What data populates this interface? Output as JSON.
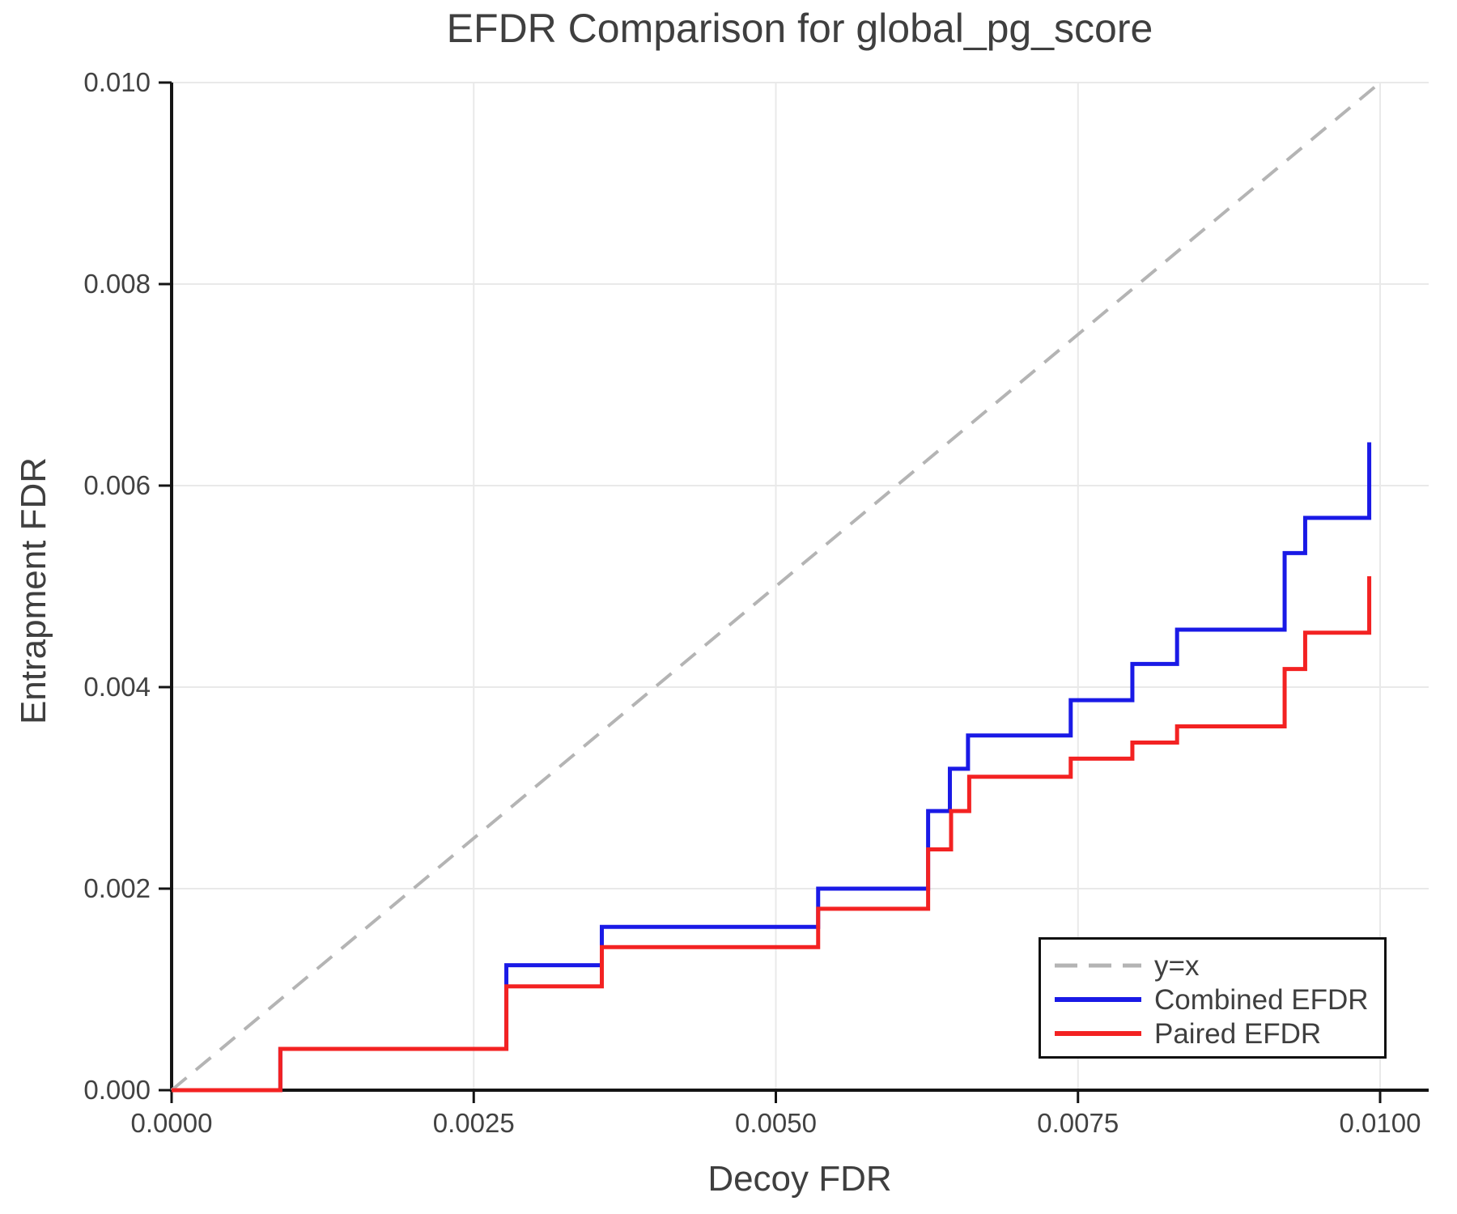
{
  "chart_data": {
    "type": "line",
    "subtype": "step-post",
    "title": "EFDR Comparison for global_pg_score",
    "xlabel": "Decoy FDR",
    "ylabel": "Entrapment FDR",
    "xlim": [
      0,
      0.0104
    ],
    "ylim": [
      0,
      0.01
    ],
    "grid": true,
    "legend_position": "lower right",
    "x_ticks": [
      {
        "value": 0.0,
        "label": "0.0000"
      },
      {
        "value": 0.0025,
        "label": "0.0025"
      },
      {
        "value": 0.005,
        "label": "0.0050"
      },
      {
        "value": 0.0075,
        "label": "0.0075"
      },
      {
        "value": 0.01,
        "label": "0.0100"
      }
    ],
    "y_ticks": [
      {
        "value": 0.0,
        "label": "0.000"
      },
      {
        "value": 0.002,
        "label": "0.002"
      },
      {
        "value": 0.004,
        "label": "0.004"
      },
      {
        "value": 0.006,
        "label": "0.006"
      },
      {
        "value": 0.008,
        "label": "0.008"
      },
      {
        "value": 0.01,
        "label": "0.010"
      }
    ],
    "reference_line": {
      "label": "y=x",
      "from": [
        0,
        0
      ],
      "to": [
        0.01,
        0.01
      ],
      "style": "dashed",
      "color": "#b4b4b4"
    },
    "series": [
      {
        "name": "Combined EFDR",
        "color": "#1a1ae6",
        "points": [
          [
            0.0,
            0.0
          ],
          [
            0.0009,
            0.00041
          ],
          [
            0.00277,
            0.00124
          ],
          [
            0.00356,
            0.00162
          ],
          [
            0.00535,
            0.002
          ],
          [
            0.00626,
            0.00277
          ],
          [
            0.00644,
            0.00319
          ],
          [
            0.00659,
            0.00352
          ],
          [
            0.00744,
            0.00387
          ],
          [
            0.00795,
            0.00423
          ],
          [
            0.00832,
            0.00457
          ],
          [
            0.00921,
            0.00533
          ],
          [
            0.00938,
            0.00568
          ],
          [
            0.00991,
            0.00643
          ]
        ]
      },
      {
        "name": "Paired EFDR",
        "color": "#f32222",
        "points": [
          [
            0.0,
            0.0
          ],
          [
            0.0009,
            0.00041
          ],
          [
            0.00277,
            0.00103
          ],
          [
            0.00356,
            0.00142
          ],
          [
            0.00535,
            0.0018
          ],
          [
            0.00626,
            0.00239
          ],
          [
            0.00645,
            0.00277
          ],
          [
            0.0066,
            0.00311
          ],
          [
            0.00744,
            0.00329
          ],
          [
            0.00795,
            0.00345
          ],
          [
            0.00832,
            0.00361
          ],
          [
            0.00921,
            0.00418
          ],
          [
            0.00938,
            0.00454
          ],
          [
            0.00991,
            0.0051
          ]
        ]
      }
    ],
    "colors": {
      "grid": "#e9e9e9",
      "axis": "#141414",
      "text": "#424242",
      "identity": "#b4b4b4"
    }
  },
  "legend": {
    "entries": [
      {
        "label": "y=x",
        "color": "#b4b4b4",
        "dashed": true
      },
      {
        "label": "Combined EFDR",
        "color": "#1a1ae6",
        "dashed": false
      },
      {
        "label": "Paired EFDR",
        "color": "#f32222",
        "dashed": false
      }
    ]
  }
}
